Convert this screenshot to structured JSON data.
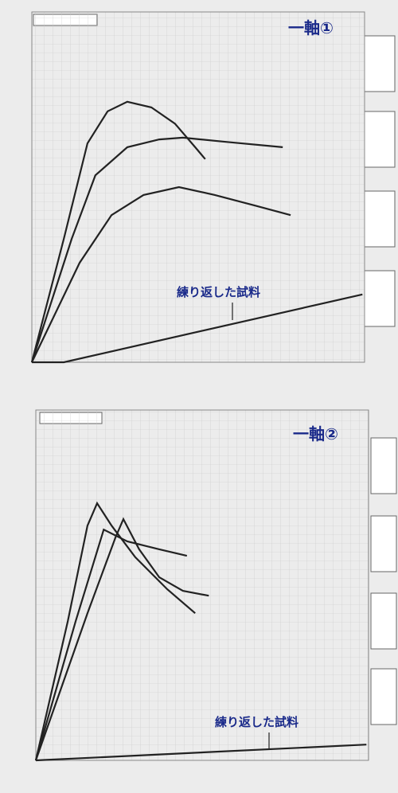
{
  "chart_data": [
    {
      "type": "line",
      "title": "一軸①",
      "annotation": "練り返した試料",
      "xlim": [
        0,
        7.6
      ],
      "ylim": [
        0,
        8
      ],
      "series": [
        {
          "color": "#222222",
          "x": [
            0,
            0.73,
            1.27,
            1.73,
            2.18,
            2.73,
            3.27,
            3.73,
            3.96
          ],
          "values": [
            0,
            2.82,
            5.0,
            5.73,
            5.95,
            5.82,
            5.45,
            4.91,
            4.64
          ]
        },
        {
          "color": "#222222",
          "x": [
            0,
            0.91,
            1.45,
            2.18,
            2.91,
            3.45,
            4.36,
            5.73
          ],
          "values": [
            0,
            2.82,
            4.27,
            4.91,
            5.09,
            5.13,
            5.04,
            4.91
          ]
        },
        {
          "color": "#222222",
          "x": [
            0,
            1.09,
            1.82,
            2.55,
            3.36,
            4.18,
            5.09,
            5.91
          ],
          "values": [
            0,
            2.27,
            3.36,
            3.82,
            4.0,
            3.82,
            3.58,
            3.36
          ]
        },
        {
          "color": "#222222",
          "x": [
            0,
            0.73,
            7.55
          ],
          "values": [
            0,
            0,
            1.55
          ]
        }
      ]
    },
    {
      "type": "line",
      "title": "一軸②",
      "annotation": "練り返した試料",
      "xlim": [
        0,
        7.6
      ],
      "ylim": [
        0,
        8
      ],
      "series": [
        {
          "color": "#222222",
          "x": [
            0,
            0.73,
            1.18,
            1.4,
            1.73,
            2.27,
            3.0,
            3.64
          ],
          "values": [
            0,
            3.18,
            5.36,
            5.87,
            5.36,
            4.64,
            3.91,
            3.36
          ]
        },
        {
          "color": "#222222",
          "x": [
            0,
            0.91,
            1.55,
            2.09,
            2.82,
            3.45
          ],
          "values": [
            0,
            3.18,
            5.27,
            5.0,
            4.82,
            4.67
          ]
        },
        {
          "color": "#222222",
          "x": [
            0,
            1.18,
            1.82,
            2.0,
            2.36,
            2.82,
            3.36,
            3.95
          ],
          "values": [
            0,
            3.36,
            5.09,
            5.51,
            4.82,
            4.18,
            3.87,
            3.76
          ]
        },
        {
          "color": "#222222",
          "x": [
            0,
            7.55
          ],
          "values": [
            0,
            0.36
          ]
        }
      ]
    }
  ]
}
